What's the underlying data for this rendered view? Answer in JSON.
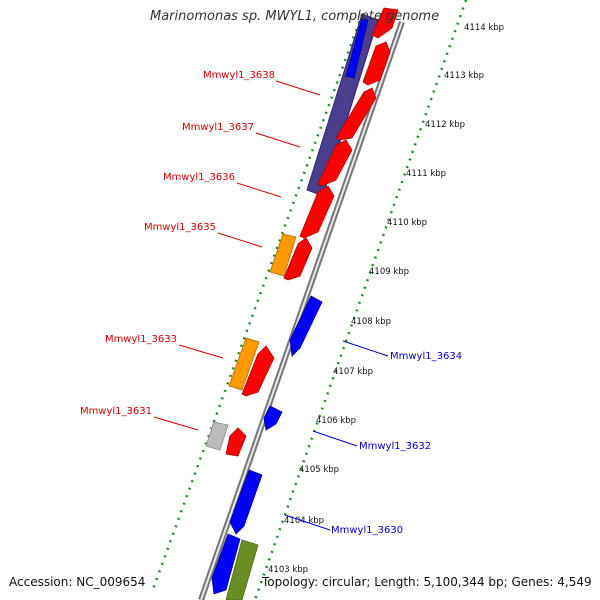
{
  "title": "Marinomonas sp. MWYL1, complete genome",
  "footer": {
    "accession": "Accession: NC_009654",
    "topology": "Topology: circular; Length: 5,100,344 bp; Genes: 4,549"
  },
  "ruler_ticks": [
    "4103 kbp",
    "4104 kbp",
    "4105 kbp",
    "4106 kbp",
    "4107 kbp",
    "4108 kbp",
    "4109 kbp",
    "4110 kbp",
    "4111 kbp",
    "4112 kbp",
    "4113 kbp",
    "4114 kbp"
  ],
  "forward_labels": [
    "Mmwyl1_3638",
    "Mmwyl1_3637",
    "Mmwyl1_3636",
    "Mmwyl1_3635",
    "Mmwyl1_3633",
    "Mmwyl1_3631"
  ],
  "reverse_labels": [
    "Mmwyl1_3634",
    "Mmwyl1_3632",
    "Mmwyl1_3630"
  ],
  "colors": {
    "forward_label": "#d40000",
    "reverse_label": "#0000cc",
    "red_gene": "#ff0000",
    "blue_gene": "#0000ff",
    "navy_band": "#4a3f8f",
    "orange_gene": "#ff9900",
    "grey_gene": "#bbbbbb",
    "olive_gene": "#6b8e23",
    "backbone": "#888888",
    "dotted_ring": "#228b22"
  }
}
